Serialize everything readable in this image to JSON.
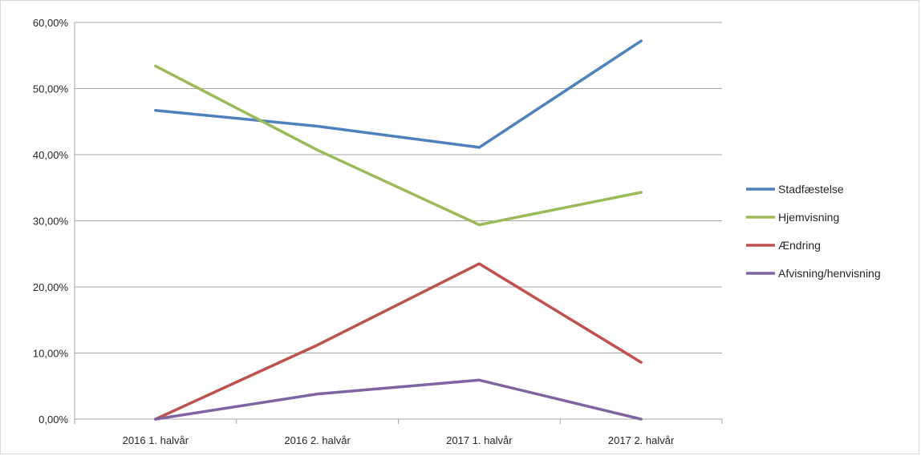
{
  "chart_data": {
    "type": "line",
    "title": "",
    "xlabel": "",
    "ylabel": "",
    "categories": [
      "2016 1. halvår",
      "2016 2. halvår",
      "2017 1. halvår",
      "2017 2. halvår"
    ],
    "ylim": [
      0,
      0.6
    ],
    "y_ticks": [
      {
        "value": 0.0,
        "label": "0,00%"
      },
      {
        "value": 0.1,
        "label": "10,00%"
      },
      {
        "value": 0.2,
        "label": "20,00%"
      },
      {
        "value": 0.3,
        "label": "30,00%"
      },
      {
        "value": 0.4,
        "label": "40,00%"
      },
      {
        "value": 0.5,
        "label": "50,00%"
      },
      {
        "value": 0.6,
        "label": "60,00%"
      }
    ],
    "grid": true,
    "legend_position": "right",
    "series": [
      {
        "name": "Stadfæstelse",
        "color": "#4f81bd",
        "values": [
          0.467,
          0.443,
          0.411,
          0.572
        ]
      },
      {
        "name": "Hjemvisning",
        "color": "#9bbb59",
        "values": [
          0.534,
          0.407,
          0.294,
          0.343
        ]
      },
      {
        "name": "Ændring",
        "color": "#c0504d",
        "values": [
          0.0,
          0.112,
          0.235,
          0.086
        ]
      },
      {
        "name": "Afvisning/henvisning",
        "color": "#8064a2",
        "values": [
          0.0,
          0.038,
          0.059,
          0.0
        ]
      }
    ]
  }
}
